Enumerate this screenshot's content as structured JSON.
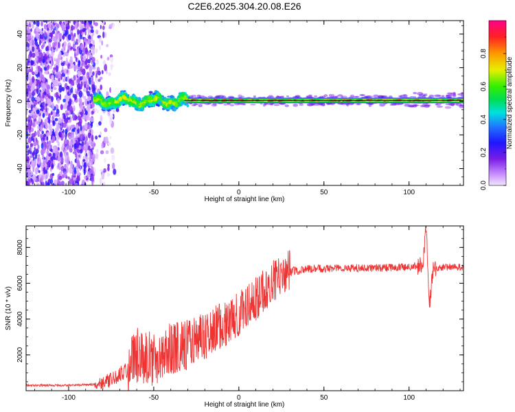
{
  "title": "C2E6.2025.304.20.08.E26",
  "chart_data": [
    {
      "type": "heatmap",
      "xlabel": "Height of straight line (km)",
      "ylabel": "Frequency (Hz)",
      "xlim": [
        -125,
        132
      ],
      "ylim": [
        -50,
        48
      ],
      "xticks": [
        -100,
        -50,
        0,
        50,
        100
      ],
      "yticks": [
        -40,
        -20,
        0,
        20,
        40
      ],
      "description_regions": [
        {
          "x_from": -125,
          "x_to": -85,
          "freq_spread": 48,
          "amplitude": [
            0.0,
            0.25
          ],
          "note": "noise scatter"
        },
        {
          "x_from": -85,
          "x_to": -30,
          "freq_spread": 5,
          "amplitude": [
            0.2,
            0.7
          ]
        },
        {
          "x_from": -30,
          "x_to": 132,
          "freq_spread": 1,
          "amplitude": [
            0.6,
            1.0
          ],
          "center_freq": 0.5
        }
      ],
      "colorbar": {
        "label": "Normalized spectral amplitude",
        "range": [
          0.0,
          1.0
        ],
        "ticks": [
          0.0,
          0.2,
          0.4,
          0.6,
          0.8
        ]
      }
    },
    {
      "type": "line",
      "xlabel": "Height of straight line (km)",
      "ylabel": "SNR (10 * v/v)",
      "xlim": [
        -125,
        132
      ],
      "ylim": [
        0,
        9200
      ],
      "xticks": [
        -100,
        -50,
        0,
        50,
        100
      ],
      "yticks": [
        2000,
        4000,
        6000,
        8000
      ],
      "color": "#ee3333",
      "trend_x": [
        -125,
        -100,
        -85,
        -75,
        -65,
        -60,
        -50,
        -40,
        -30,
        -20,
        -10,
        0,
        10,
        20,
        30,
        40,
        60,
        80,
        100,
        108,
        110,
        112,
        114,
        120,
        132
      ],
      "trend_y": [
        300,
        300,
        350,
        600,
        1100,
        1800,
        1600,
        2200,
        2400,
        2900,
        3500,
        4100,
        5000,
        6000,
        6600,
        6800,
        6850,
        6850,
        6900,
        7000,
        9200,
        4700,
        6700,
        6900,
        6900
      ]
    }
  ]
}
